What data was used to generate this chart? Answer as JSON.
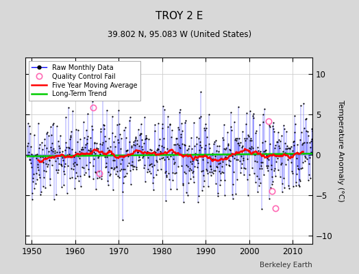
{
  "title": "TROY 2 E",
  "subtitle": "39.802 N, 95.083 W (United States)",
  "ylabel": "Temperature Anomaly (°C)",
  "credit": "Berkeley Earth",
  "xlim": [
    1948.5,
    2014.5
  ],
  "ylim": [
    -11,
    12
  ],
  "yticks": [
    -10,
    -5,
    0,
    5,
    10
  ],
  "xticks": [
    1950,
    1960,
    1970,
    1980,
    1990,
    2000,
    2010
  ],
  "background_color": "#d8d8d8",
  "plot_bg_color": "#ffffff",
  "raw_line_color": "#0000ff",
  "raw_dot_color": "#000000",
  "moving_avg_color": "#ff0000",
  "trend_color": "#00cc00",
  "qc_fail_color": "#ff69b4",
  "seed": 42,
  "start_year": 1949,
  "end_year": 2014,
  "qc_fail_points": [
    {
      "year": 1964.2,
      "value": 5.8
    },
    {
      "year": 1965.5,
      "value": -2.3
    },
    {
      "year": 2004.5,
      "value": 4.1
    },
    {
      "year": 2005.2,
      "value": -4.5
    },
    {
      "year": 2006.0,
      "value": -6.6
    }
  ]
}
